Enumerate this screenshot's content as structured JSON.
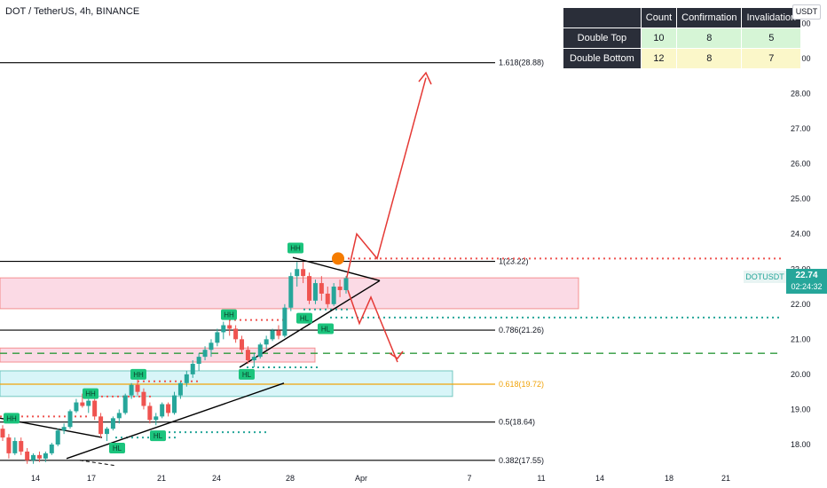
{
  "header": {
    "title": "DOT / TetherUS, 4h, BINANCE"
  },
  "price_axis": {
    "currency_badge": "USDT"
  },
  "stats_table": {
    "headers": [
      "",
      "Count",
      "Confirmation",
      "Invalidation"
    ],
    "rows": [
      {
        "label": "Double Top",
        "count": "10",
        "confirmation": "8",
        "invalidation": "5",
        "color": "#d6f5d6"
      },
      {
        "label": "Double Bottom",
        "count": "12",
        "confirmation": "8",
        "invalidation": "7",
        "color": "#fbf7c9"
      }
    ]
  },
  "ticker": {
    "symbol": "DOTUSDT",
    "price": "22.74",
    "countdown": "02:24:32"
  },
  "colors": {
    "up": "#26a69a",
    "down": "#ef5350",
    "fib_highlight": "#f0a30a",
    "support_zone": "#b2ebf2",
    "resistance_zone": "#f8bbd0",
    "projection_arrow": "#e53935",
    "pivot_marker": "#1bc47d",
    "pattern_marker": "#f57c00"
  },
  "chart_data": {
    "type": "candlestick",
    "title": "DOT / TetherUS, 4h, BINANCE",
    "y_axis": {
      "ticks": [
        "18.00",
        "19.00",
        "20.00",
        "21.00",
        "22.00",
        "23.00",
        "24.00",
        "25.00",
        "26.00",
        "27.00",
        "28.00",
        "29.00",
        "30.00"
      ],
      "range": [
        17.45,
        30.3
      ]
    },
    "x_axis": {
      "ticks": [
        "14",
        "17",
        "21",
        "24",
        "28",
        "Apr",
        "7",
        "11",
        "14",
        "18",
        "21"
      ]
    },
    "fib_levels": [
      {
        "label": "1.618(28.88)",
        "value": 28.88,
        "highlight": false
      },
      {
        "label": "1(23.22)",
        "value": 23.22,
        "highlight": false
      },
      {
        "label": "0.786(21.26)",
        "value": 21.26,
        "highlight": false
      },
      {
        "label": "0.618(19.72)",
        "value": 19.72,
        "highlight": true
      },
      {
        "label": "0.5(18.64)",
        "value": 18.64,
        "highlight": false
      },
      {
        "label": "0.382(17.55)",
        "value": 17.55,
        "highlight": false
      }
    ],
    "pivot_labels": [
      {
        "text": "HH",
        "x": "mar-13",
        "y": 18.75
      },
      {
        "text": "HH",
        "x": "mar-17",
        "y": 19.45
      },
      {
        "text": "HH",
        "x": "mar-20",
        "y": 20.0
      },
      {
        "text": "HH",
        "x": "mar-25",
        "y": 21.7
      },
      {
        "text": "HH",
        "x": "mar-28",
        "y": 23.6
      },
      {
        "text": "HL",
        "x": "mar-18",
        "y": 17.9
      },
      {
        "text": "HL",
        "x": "mar-21",
        "y": 18.25
      },
      {
        "text": "HL",
        "x": "mar-25",
        "y": 20.0
      },
      {
        "text": "HL",
        "x": "mar-29",
        "y": 21.6
      },
      {
        "text": "HL",
        "x": "mar-30",
        "y": 21.3
      }
    ],
    "candles": [
      [
        18.45,
        18.55,
        18.1,
        18.2
      ],
      [
        18.2,
        18.3,
        17.6,
        17.75
      ],
      [
        17.75,
        18.2,
        17.7,
        18.1
      ],
      [
        18.1,
        18.2,
        17.7,
        17.8
      ],
      [
        17.8,
        17.9,
        17.45,
        17.55
      ],
      [
        17.55,
        17.75,
        17.45,
        17.7
      ],
      [
        17.7,
        17.8,
        17.5,
        17.6
      ],
      [
        17.6,
        17.8,
        17.5,
        17.75
      ],
      [
        17.75,
        18.05,
        17.7,
        18.0
      ],
      [
        18.0,
        18.45,
        17.95,
        18.4
      ],
      [
        18.4,
        18.6,
        18.3,
        18.5
      ],
      [
        18.5,
        19.0,
        18.45,
        18.95
      ],
      [
        18.95,
        19.3,
        18.9,
        19.2
      ],
      [
        19.2,
        19.45,
        19.05,
        19.1
      ],
      [
        19.1,
        19.3,
        18.9,
        19.25
      ],
      [
        19.25,
        19.35,
        18.7,
        18.8
      ],
      [
        18.8,
        18.9,
        18.2,
        18.3
      ],
      [
        18.3,
        18.5,
        18.1,
        18.45
      ],
      [
        18.45,
        18.8,
        18.4,
        18.75
      ],
      [
        18.75,
        19.0,
        18.6,
        18.9
      ],
      [
        18.9,
        19.45,
        18.85,
        19.4
      ],
      [
        19.4,
        19.75,
        19.3,
        19.7
      ],
      [
        19.7,
        20.0,
        19.4,
        19.5
      ],
      [
        19.5,
        19.6,
        19.0,
        19.1
      ],
      [
        19.1,
        19.2,
        18.6,
        18.7
      ],
      [
        18.7,
        18.9,
        18.55,
        18.8
      ],
      [
        18.8,
        19.2,
        18.75,
        19.15
      ],
      [
        19.15,
        19.2,
        18.8,
        18.9
      ],
      [
        18.9,
        19.5,
        18.85,
        19.4
      ],
      [
        19.4,
        19.8,
        19.3,
        19.75
      ],
      [
        19.75,
        20.1,
        19.65,
        20.0
      ],
      [
        20.0,
        20.4,
        19.9,
        20.3
      ],
      [
        20.3,
        20.6,
        20.1,
        20.5
      ],
      [
        20.5,
        20.8,
        20.4,
        20.7
      ],
      [
        20.7,
        21.0,
        20.5,
        20.9
      ],
      [
        20.9,
        21.3,
        20.8,
        21.2
      ],
      [
        21.2,
        21.5,
        21.0,
        21.4
      ],
      [
        21.4,
        21.6,
        21.1,
        21.3
      ],
      [
        21.3,
        21.4,
        20.9,
        21.0
      ],
      [
        21.0,
        21.1,
        20.6,
        20.7
      ],
      [
        20.7,
        20.8,
        20.3,
        20.4
      ],
      [
        20.4,
        20.6,
        20.2,
        20.5
      ],
      [
        20.5,
        20.9,
        20.45,
        20.85
      ],
      [
        20.85,
        21.1,
        20.7,
        21.0
      ],
      [
        21.0,
        21.3,
        20.95,
        21.25
      ],
      [
        21.25,
        21.4,
        21.0,
        21.1
      ],
      [
        21.1,
        22.0,
        21.05,
        21.9
      ],
      [
        21.9,
        22.9,
        21.8,
        22.8
      ],
      [
        22.8,
        23.2,
        22.5,
        23.0
      ],
      [
        23.0,
        23.2,
        22.6,
        22.8
      ],
      [
        22.8,
        22.9,
        22.0,
        22.1
      ],
      [
        22.1,
        22.7,
        22.0,
        22.6
      ],
      [
        22.6,
        22.8,
        22.1,
        22.3
      ],
      [
        22.3,
        22.5,
        21.9,
        22.0
      ],
      [
        22.0,
        22.6,
        21.95,
        22.5
      ],
      [
        22.5,
        22.7,
        22.2,
        22.4
      ],
      [
        22.4,
        22.8,
        22.3,
        22.74
      ]
    ]
  }
}
